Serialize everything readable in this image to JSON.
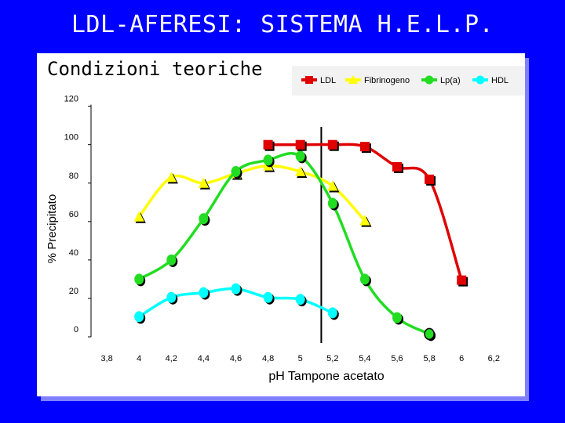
{
  "slide": {
    "title": "LDL-AFERESI: SISTEMA H.E.L.P.",
    "subtitle": "Condizioni teoriche"
  },
  "colors": {
    "background": "#0000ff",
    "panel": "#ffffff",
    "ldl": "#e00000",
    "fibrinogeno": "#ffff00",
    "lpa": "#22dd22",
    "hdl": "#00ffff",
    "ph_marker": "#000000"
  },
  "chart_data": {
    "type": "line",
    "xlabel": "pH  Tampone acetato",
    "ylabel": "% Precipitato",
    "xlim": [
      3.6,
      6.2
    ],
    "ylim": [
      0,
      120
    ],
    "x_ticks": [
      3.8,
      4,
      4.2,
      4.4,
      4.6,
      4.8,
      5,
      5.2,
      5.4,
      5.6,
      5.8,
      6,
      6.2
    ],
    "x_tick_labels": [
      "3,8",
      "4",
      "4,2",
      "4,4",
      "4,6",
      "4,8",
      "5",
      "5,2",
      "5,4",
      "5,6",
      "5,8",
      "6",
      "6,2"
    ],
    "y_ticks": [
      0,
      20,
      40,
      60,
      80,
      100,
      120
    ],
    "y_tick_labels": [
      "0",
      "20",
      "40",
      "60",
      "80",
      "100",
      "120"
    ],
    "vertical_line_x": 5.13,
    "legend_position": "top-right",
    "series": [
      {
        "name": "LDL",
        "color": "#e00000",
        "marker": "square",
        "points": [
          [
            4.8,
            100
          ],
          [
            5.0,
            100
          ],
          [
            5.2,
            100
          ],
          [
            5.4,
            99
          ],
          [
            5.6,
            88.5
          ],
          [
            5.8,
            82
          ],
          [
            6.0,
            29.5
          ]
        ]
      },
      {
        "name": "Fibrinogeno",
        "color": "#ffff00",
        "marker": "triangle",
        "points": [
          [
            4.0,
            62.5
          ],
          [
            4.2,
            83
          ],
          [
            4.4,
            80
          ],
          [
            4.6,
            85
          ],
          [
            4.8,
            89
          ],
          [
            5.0,
            86
          ],
          [
            5.2,
            78.5
          ],
          [
            5.4,
            60.5
          ]
        ]
      },
      {
        "name": "Lp(a)",
        "color": "#22dd22",
        "marker": "circle",
        "points": [
          [
            4.0,
            30
          ],
          [
            4.2,
            40
          ],
          [
            4.4,
            61.5
          ],
          [
            4.6,
            86
          ],
          [
            4.8,
            92
          ],
          [
            5.0,
            94
          ],
          [
            5.2,
            69.5
          ],
          [
            5.4,
            30
          ],
          [
            5.6,
            10
          ],
          [
            5.8,
            1.5
          ]
        ]
      },
      {
        "name": "HDL",
        "color": "#00ffff",
        "marker": "circle",
        "points": [
          [
            4.0,
            10.5
          ],
          [
            4.2,
            20.5
          ],
          [
            4.4,
            23
          ],
          [
            4.6,
            25
          ],
          [
            4.8,
            20.5
          ],
          [
            5.0,
            19.5
          ],
          [
            5.2,
            12.5
          ]
        ]
      }
    ]
  }
}
